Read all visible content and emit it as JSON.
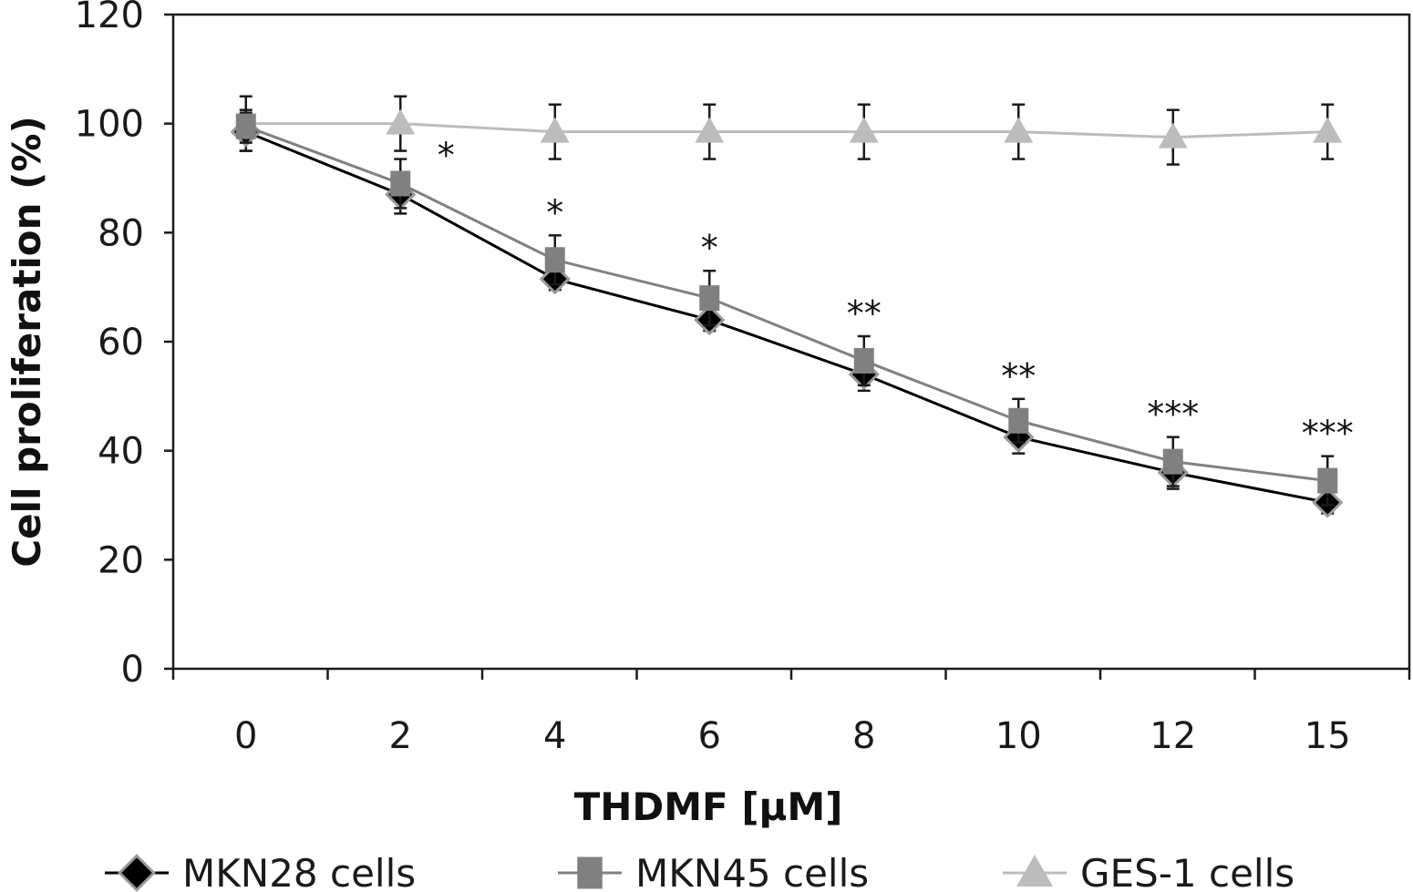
{
  "chart_data": {
    "type": "line",
    "xlabel": "THDMF [µM]",
    "ylabel": "Cell proliferation (%)",
    "categories": [
      "0",
      "2",
      "4",
      "6",
      "8",
      "10",
      "12",
      "15"
    ],
    "ylim": [
      0,
      120
    ],
    "yticks": [
      "0",
      "20",
      "40",
      "60",
      "80",
      "100",
      "120"
    ],
    "grid": false,
    "legend_position": "bottom",
    "series": [
      {
        "name": "MKN28 cells",
        "marker": "diamond",
        "color": "#000000",
        "values": [
          98.5,
          87,
          71.5,
          64,
          54,
          42.5,
          36,
          30.5
        ],
        "errors": [
          3.5,
          3.5,
          2,
          2,
          3,
          3,
          3,
          2
        ]
      },
      {
        "name": "MKN45 cells",
        "marker": "square",
        "color": "#808080",
        "values": [
          99.5,
          89,
          75,
          68,
          56.5,
          45.5,
          38,
          34.5
        ],
        "errors": [
          3,
          4.5,
          4.5,
          5,
          4.5,
          4,
          4.5,
          4.5
        ]
      },
      {
        "name": "GES-1 cells",
        "marker": "triangle",
        "color": "#bcbcbc",
        "values": [
          100,
          100,
          98.5,
          98.5,
          98.5,
          98.5,
          97.5,
          98.5
        ],
        "errors": [
          5,
          5,
          5,
          5,
          5,
          5,
          5,
          5
        ]
      }
    ],
    "significance": [
      "",
      "*",
      "*",
      "*",
      "**",
      "**",
      "***",
      "***"
    ]
  }
}
